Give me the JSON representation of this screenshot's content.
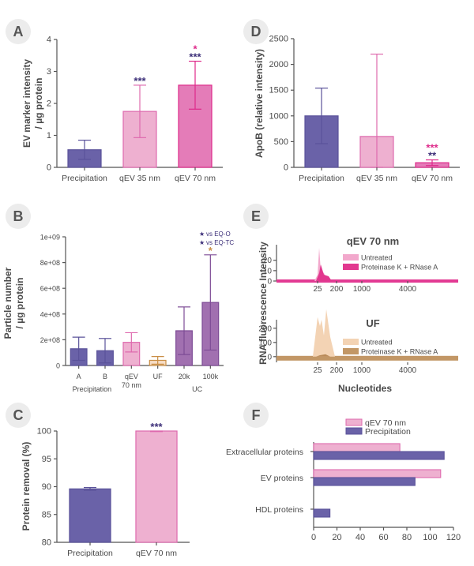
{
  "panel_labels": [
    "A",
    "D",
    "B",
    "E",
    "C",
    "F"
  ],
  "colors": {
    "purple": "#5a529a",
    "pink_light": "#e89ac4",
    "pink": "#de6aae",
    "magenta": "#de2a8a",
    "orange": "#c98e45",
    "uf_fill": "#f3d8be",
    "axis": "#555555",
    "star_purple": "#3c2f78"
  },
  "chart_data": [
    {
      "id": "A",
      "type": "bar",
      "ylabel_line1": "EV marker intensity",
      "ylabel_line2": "/ µg protein",
      "categories": [
        "Precipitation",
        "qEV 35 nm",
        "qEV 70 nm"
      ],
      "values": [
        0.55,
        1.75,
        2.57
      ],
      "errors": [
        0.3,
        0.82,
        0.75
      ],
      "ylim": [
        0,
        4
      ],
      "yticks": [
        "0",
        "1",
        "2",
        "3",
        "4"
      ],
      "annotations": [
        {
          "category": "qEV 35 nm",
          "lines": [
            {
              "text": "***",
              "color": "star_purple"
            }
          ]
        },
        {
          "category": "qEV 70 nm",
          "lines": [
            {
              "text": "*",
              "color": "magenta"
            },
            {
              "text": "***",
              "color": "star_purple"
            }
          ]
        }
      ]
    },
    {
      "id": "D",
      "type": "bar",
      "ylabel": "ApoB (relative intensity)",
      "categories": [
        "Precipitation",
        "qEV 35 nm",
        "qEV 70 nm"
      ],
      "values": [
        1000,
        600,
        90
      ],
      "errors": [
        540,
        1600,
        55
      ],
      "ylim": [
        0,
        2500
      ],
      "yticks": [
        "0",
        "500",
        "1000",
        "1500",
        "2000",
        "2500"
      ],
      "annotations": [
        {
          "category": "qEV 70 nm",
          "lines": [
            {
              "text": "***",
              "color": "magenta"
            },
            {
              "text": "**",
              "color": "star_purple"
            }
          ]
        }
      ]
    },
    {
      "id": "B",
      "type": "bar",
      "ylabel_line1": "Particle number",
      "ylabel_line2": "/ µg protein",
      "categories": [
        "A",
        "B",
        "qEV 70 nm",
        "UF",
        "20k",
        "100k"
      ],
      "category_lines": [
        [
          "A"
        ],
        [
          "B"
        ],
        [
          "qEV",
          "70 nm"
        ],
        [
          "UF"
        ],
        [
          "20k"
        ],
        [
          "100k"
        ]
      ],
      "values": [
        130000000,
        115000000,
        180000000,
        40000000,
        270000000,
        490000000
      ],
      "errors": [
        90000000,
        95000000,
        75000000,
        30000000,
        185000000,
        370000000
      ],
      "ylim": [
        0,
        1000000000
      ],
      "yticks": [
        "0",
        "2e+08",
        "4e+08",
        "6e+08",
        "8e+08",
        "1e+09"
      ],
      "group_labels": [
        "Precipitation",
        "UC"
      ],
      "legend": [
        {
          "text": "vs EQ-O",
          "marker": "★"
        },
        {
          "text": "vs EQ-TC",
          "marker": "★"
        }
      ],
      "annotations": [
        {
          "category": "100k",
          "lines": [
            {
              "text": "*",
              "color": "orange"
            }
          ]
        }
      ]
    },
    {
      "id": "E",
      "type": "area",
      "ylabel": "RNA fluorescence Intensity",
      "xlabel": "Nucleotides",
      "x_ticks": [
        "25",
        "200",
        "1000",
        "4000"
      ],
      "subplots": [
        {
          "title": "qEV 70 nm",
          "yticks": [
            "0",
            "10",
            "20"
          ],
          "ylim": [
            0,
            35
          ],
          "series": [
            {
              "name": "Untreated",
              "peak": 32
            },
            {
              "name": "Proteinase K + RNase A",
              "peak": 16
            }
          ]
        },
        {
          "title": "UF",
          "yticks": [
            "0",
            "100",
            "200"
          ],
          "ylim": [
            -40,
            260
          ],
          "series": [
            {
              "name": "Untreated",
              "peak": 260
            },
            {
              "name": "Proteinase K + RNase A",
              "peak": 10
            }
          ]
        }
      ]
    },
    {
      "id": "C",
      "type": "bar",
      "ylabel": "Protein removal (%)",
      "categories": [
        "Precipitation",
        "qEV 70 nm"
      ],
      "values": [
        89.6,
        100
      ],
      "errors": [
        0.25,
        0.1
      ],
      "ylim": [
        80,
        100
      ],
      "yticks": [
        "80",
        "85",
        "90",
        "95",
        "100"
      ],
      "annotations": [
        {
          "category": "qEV 70 nm",
          "lines": [
            {
              "text": "***",
              "color": "star_purple"
            }
          ]
        }
      ]
    },
    {
      "id": "F",
      "type": "bar",
      "orientation": "horizontal",
      "categories": [
        "Extracellular proteins",
        "EV proteins",
        "HDL proteins"
      ],
      "series": [
        {
          "name": "qEV 70 nm",
          "values": [
            74,
            109,
            0
          ]
        },
        {
          "name": "Precipitation",
          "values": [
            112,
            87,
            14
          ]
        }
      ],
      "xlim": [
        0,
        120
      ],
      "xticks": [
        "0",
        "20",
        "40",
        "60",
        "80",
        "100",
        "120"
      ]
    }
  ]
}
